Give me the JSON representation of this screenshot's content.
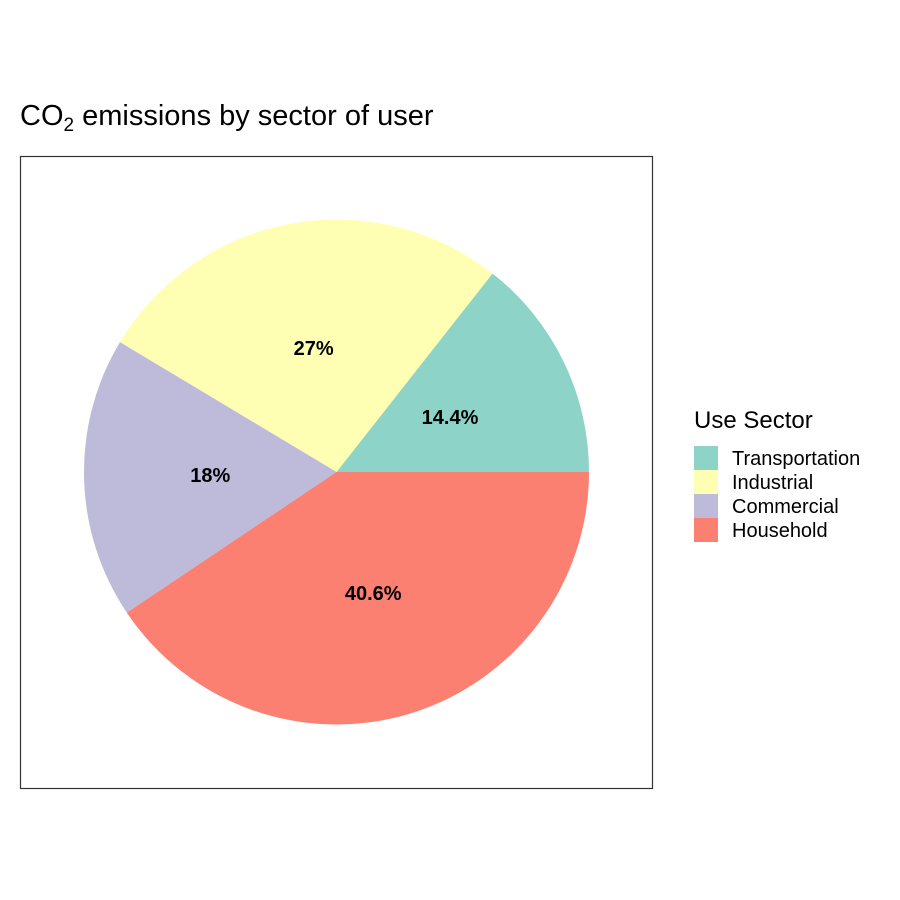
{
  "title": {
    "prefix": "CO",
    "subscript": "2",
    "suffix": " emissions by sector of user"
  },
  "chart_data": {
    "type": "pie",
    "legend_title": "Use Sector",
    "legend_position": "right",
    "categories": [
      "Transportation",
      "Industrial",
      "Commercial",
      "Household"
    ],
    "values": [
      14.4,
      27,
      18,
      40.6
    ],
    "labels": [
      "14.4%",
      "27%",
      "18%",
      "40.6%"
    ],
    "colors": [
      "#8DD3C7",
      "#FFFFB3",
      "#BEBADA",
      "#FB8072"
    ]
  }
}
